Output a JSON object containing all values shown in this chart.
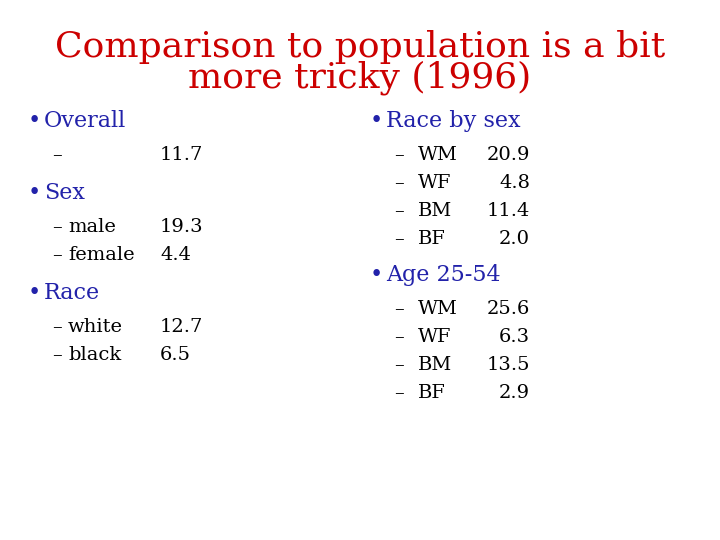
{
  "title_line1": "Comparison to population is a bit",
  "title_line2": "more tricky (1996)",
  "title_color": "#cc0000",
  "title_fontsize": 26,
  "bullet_color": "#2222aa",
  "sub_color": "#000000",
  "bullet_fontsize": 16,
  "sub_fontsize": 14,
  "background_color": "#ffffff",
  "left_col": {
    "bullet1_header": "Overall",
    "bullet1_items": [
      {
        "label": "",
        "value": "11.7"
      }
    ],
    "bullet2_header": "Sex",
    "bullet2_items": [
      {
        "label": "male",
        "value": "19.3"
      },
      {
        "label": "female",
        "value": "4.4"
      }
    ],
    "bullet3_header": "Race",
    "bullet3_items": [
      {
        "label": "white",
        "value": "12.7"
      },
      {
        "label": "black",
        "value": "6.5"
      }
    ]
  },
  "right_col": {
    "bullet1_header": "Race by sex",
    "bullet1_items": [
      {
        "label": "WM",
        "value": "20.9"
      },
      {
        "label": "WF",
        "value": "4.8"
      },
      {
        "label": "BM",
        "value": "11.4"
      },
      {
        "label": "BF",
        "value": "2.0"
      }
    ],
    "bullet2_header": "Age 25-54",
    "bullet2_items": [
      {
        "label": "WM",
        "value": "25.6"
      },
      {
        "label": "WF",
        "value": "6.3"
      },
      {
        "label": "BM",
        "value": "13.5"
      },
      {
        "label": "BF",
        "value": "2.9"
      }
    ]
  }
}
